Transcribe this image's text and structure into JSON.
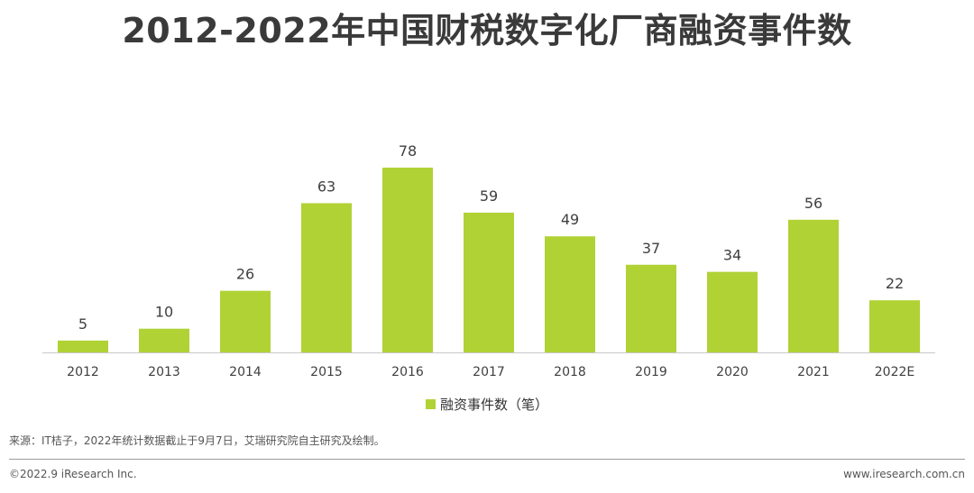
{
  "title": "2012-2022年中国财税数字化厂商融资事件数",
  "chart_data": {
    "type": "bar",
    "categories": [
      "2012",
      "2013",
      "2014",
      "2015",
      "2016",
      "2017",
      "2018",
      "2019",
      "2020",
      "2021",
      "2022E"
    ],
    "series": [
      {
        "name": "融资事件数（笔）",
        "values": [
          5,
          10,
          26,
          63,
          78,
          59,
          49,
          37,
          34,
          56,
          22
        ],
        "color": "#b0d235"
      }
    ],
    "ylim": [
      0,
      78
    ],
    "grid": false,
    "legend_position": "bottom-center",
    "data_labels": true
  },
  "footer": {
    "source": "来源：IT桔子，2022年统计数据截止于9月7日，艾瑞研究院自主研究及绘制。",
    "copyright": "©2022.9 iResearch Inc.",
    "website": "www.iresearch.com.cn"
  }
}
